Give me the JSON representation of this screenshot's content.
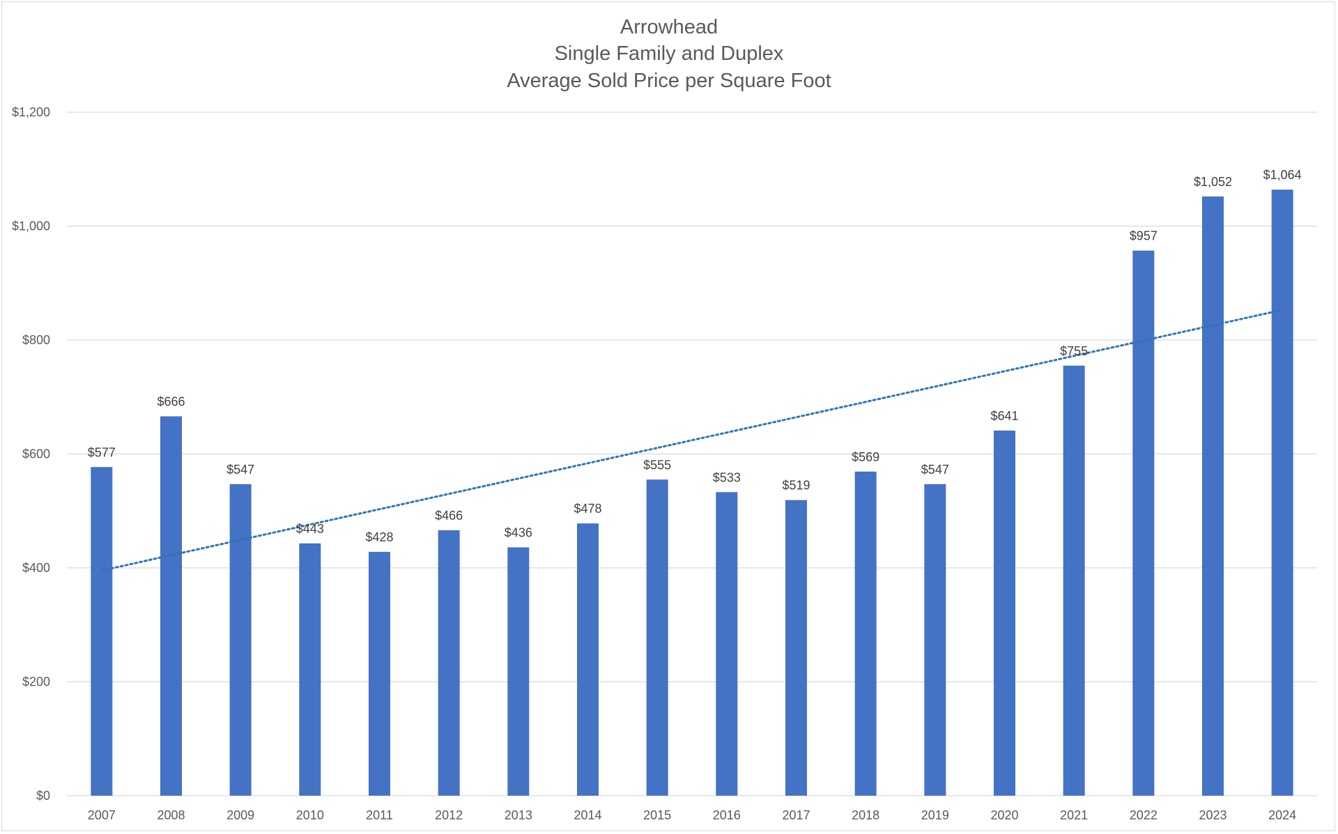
{
  "chart_data": {
    "type": "bar",
    "title": [
      "Arrowhead",
      "Single Family and Duplex",
      "Average Sold Price per Square Foot"
    ],
    "categories": [
      "2007",
      "2008",
      "2009",
      "2010",
      "2011",
      "2012",
      "2013",
      "2014",
      "2015",
      "2016",
      "2017",
      "2018",
      "2019",
      "2020",
      "2021",
      "2022",
      "2023",
      "2024"
    ],
    "values": [
      577,
      666,
      547,
      443,
      428,
      466,
      436,
      478,
      555,
      533,
      519,
      569,
      547,
      641,
      755,
      957,
      1052,
      1064
    ],
    "data_labels": [
      "$577",
      "$666",
      "$547",
      "$443",
      "$428",
      "$466",
      "$436",
      "$478",
      "$555",
      "$533",
      "$519",
      "$569",
      "$547",
      "$641",
      "$755",
      "$957",
      "$1,052",
      "$1,064"
    ],
    "y_ticks": [
      0,
      200,
      400,
      600,
      800,
      1000,
      1200
    ],
    "y_tick_labels": [
      "$0",
      "$200",
      "$400",
      "$600",
      "$800",
      "$1,000",
      "$1,200"
    ],
    "ylim": [
      0,
      1200
    ],
    "xlabel": "",
    "ylabel": "",
    "grid": true,
    "legend": "none",
    "trendline": {
      "type": "linear",
      "style": "dotted",
      "color": "#2e75b6"
    },
    "colors": {
      "bar": "#4472c4",
      "grid": "#d9d9d9",
      "trendline": "#2e75b6",
      "text": "#595959"
    }
  }
}
